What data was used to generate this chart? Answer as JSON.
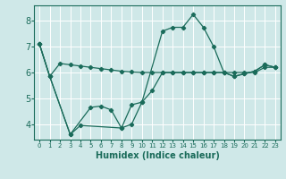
{
  "xlabel": "Humidex (Indice chaleur)",
  "background_color": "#cfe8e8",
  "grid_color": "#b8d8d8",
  "line_color": "#1a6b5a",
  "xlim": [
    -0.5,
    23.5
  ],
  "ylim": [
    3.4,
    8.6
  ],
  "yticks": [
    4,
    5,
    6,
    7,
    8
  ],
  "xticks": [
    0,
    1,
    2,
    3,
    4,
    5,
    6,
    7,
    8,
    9,
    10,
    11,
    12,
    13,
    14,
    15,
    16,
    17,
    18,
    19,
    20,
    21,
    22,
    23
  ],
  "line1_x": [
    0,
    1,
    2,
    3,
    4,
    5,
    6,
    7,
    8,
    9,
    10,
    11,
    12,
    13,
    14,
    15,
    16,
    17,
    18,
    19,
    20,
    21,
    22,
    23
  ],
  "line1_y": [
    7.1,
    5.85,
    6.35,
    6.3,
    6.25,
    6.2,
    6.15,
    6.1,
    6.05,
    6.02,
    6.0,
    6.0,
    6.0,
    6.0,
    6.0,
    6.0,
    6.0,
    6.0,
    6.0,
    6.0,
    6.0,
    6.0,
    6.2,
    6.2
  ],
  "line2_x": [
    0,
    1,
    3,
    5,
    6,
    7,
    8,
    9,
    10,
    12,
    13,
    14,
    15,
    16,
    17,
    18,
    19,
    20,
    21,
    22,
    23
  ],
  "line2_y": [
    7.1,
    5.85,
    3.6,
    4.65,
    4.7,
    4.55,
    3.85,
    4.75,
    4.85,
    7.6,
    7.75,
    7.75,
    8.25,
    7.75,
    7.0,
    6.0,
    5.85,
    5.95,
    6.05,
    6.3,
    6.2
  ],
  "line3_x": [
    0,
    1,
    3,
    4,
    8,
    9,
    10,
    11,
    12,
    13,
    14,
    15,
    16,
    17,
    18,
    19,
    20,
    21,
    22,
    23
  ],
  "line3_y": [
    7.1,
    5.85,
    3.6,
    3.95,
    3.85,
    4.0,
    4.85,
    5.3,
    6.0,
    6.0,
    6.0,
    6.0,
    6.0,
    6.0,
    6.0,
    5.85,
    5.95,
    6.05,
    6.3,
    6.2
  ]
}
